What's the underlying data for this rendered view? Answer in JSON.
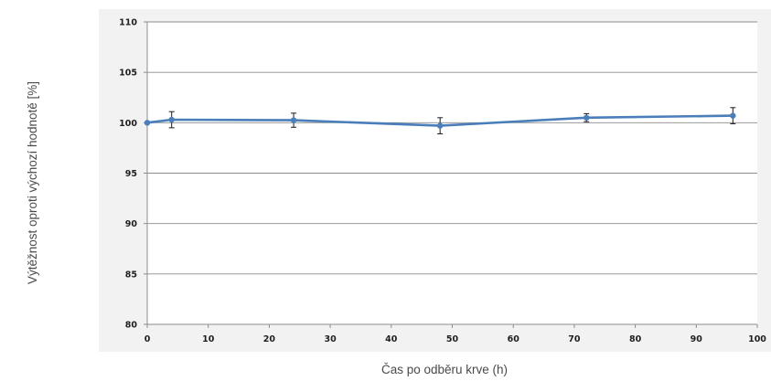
{
  "chart_data": {
    "type": "line",
    "title": "",
    "xlabel": "Čas po odběru krve (h)",
    "ylabel": "Výtěžnost oproti výchozí hodnotě [%]",
    "xlim": [
      0,
      100
    ],
    "ylim": [
      80,
      110
    ],
    "x_ticks": [
      0,
      10,
      20,
      30,
      40,
      50,
      60,
      70,
      80,
      90,
      100
    ],
    "y_ticks": [
      80,
      85,
      90,
      95,
      100,
      105,
      110
    ],
    "grid": "horizontal",
    "legend": "none",
    "series": [
      {
        "color": "#4a7ebb",
        "points": [
          {
            "x": 0,
            "y": 100.0,
            "err": 0
          },
          {
            "x": 4,
            "y": 100.3,
            "err": 0.8
          },
          {
            "x": 24,
            "y": 100.25,
            "err": 0.7
          },
          {
            "x": 48,
            "y": 99.7,
            "err": 0.8
          },
          {
            "x": 72,
            "y": 100.5,
            "err": 0.4
          },
          {
            "x": 96,
            "y": 100.7,
            "err": 0.8
          }
        ]
      }
    ]
  }
}
